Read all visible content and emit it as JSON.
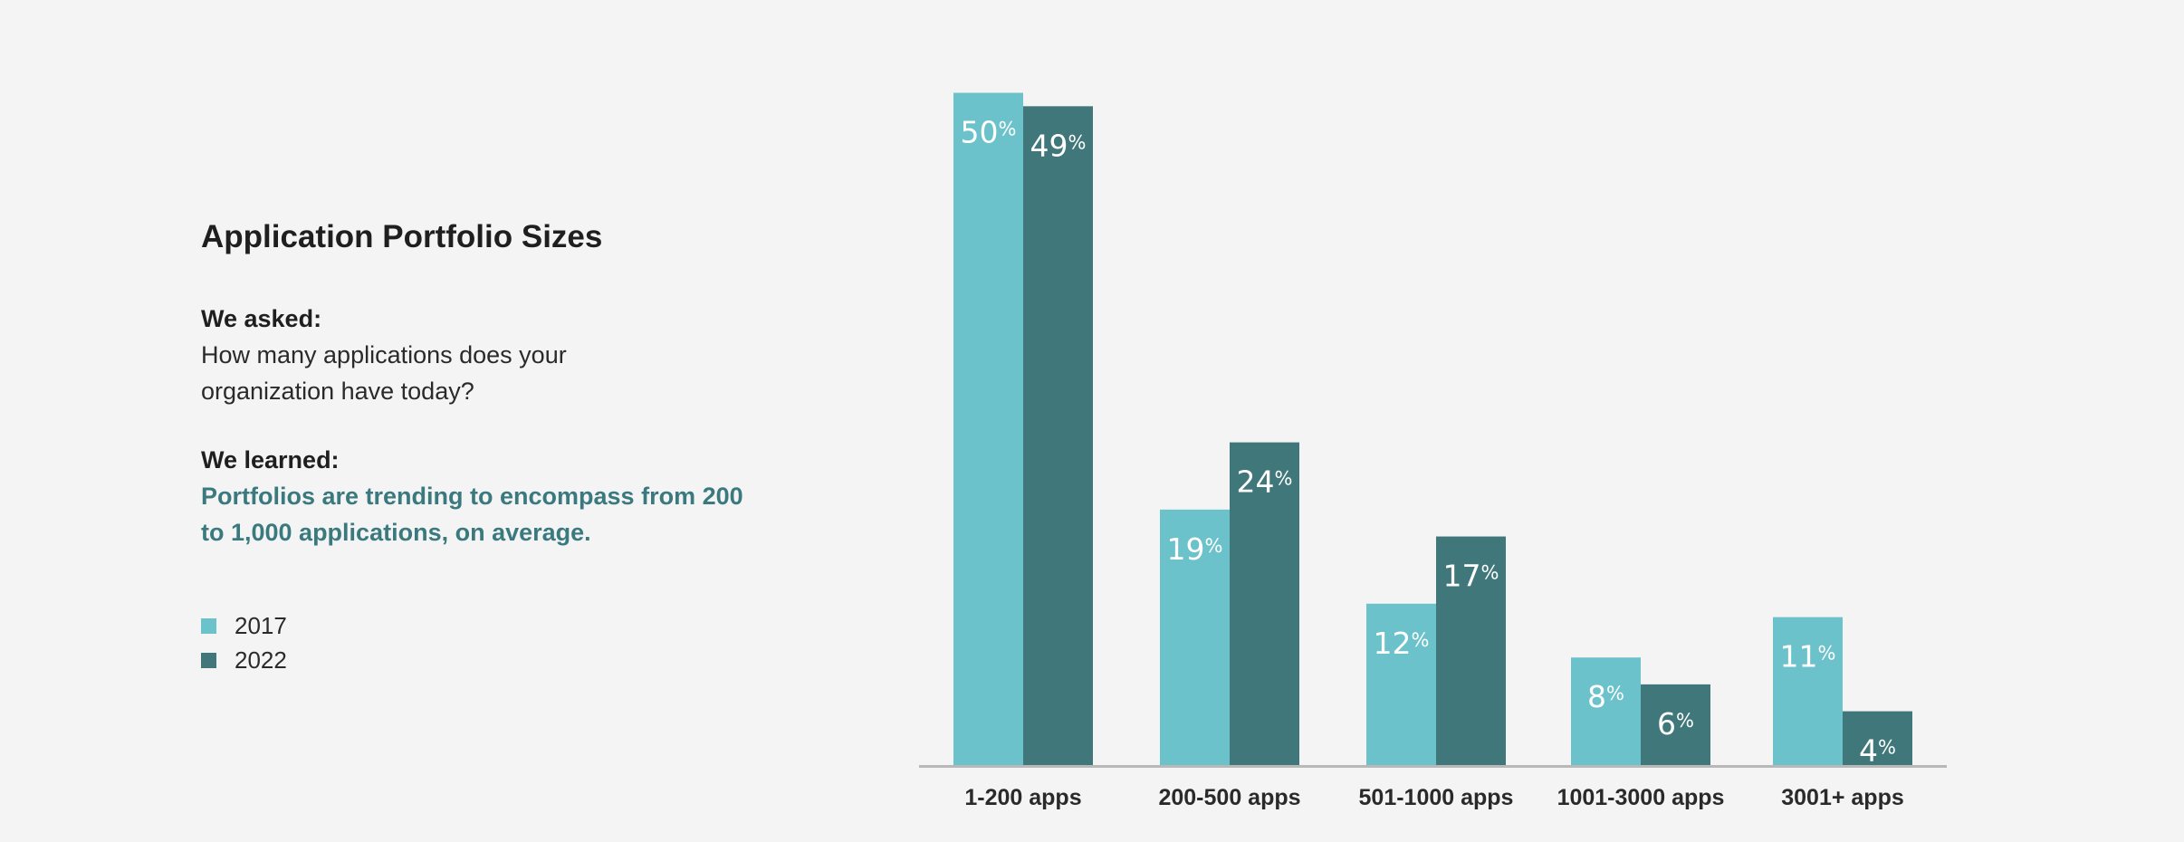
{
  "panel": {
    "title": "Application Portfolio Sizes",
    "asked_label": "We asked:",
    "question": "How many applications does your organization have today?",
    "learned_label": "We learned:",
    "finding": "Portfolios are trending to encompass from 200 to 1,000 applications, on average."
  },
  "colors": {
    "series_2017": "#6cc2cb",
    "series_2022": "#40777a",
    "axis": "#b8b8b8",
    "finding_text": "#3a7a7f"
  },
  "chart_data": {
    "type": "bar",
    "categories": [
      "1-200 apps",
      "200-500 apps",
      "501-1000 apps",
      "1001-3000 apps",
      "3001+ apps"
    ],
    "series": [
      {
        "name": "2017",
        "values": [
          50,
          19,
          12,
          8,
          11
        ],
        "color": "#6cc2cb"
      },
      {
        "name": "2022",
        "values": [
          49,
          24,
          17,
          6,
          4
        ],
        "color": "#40777a"
      }
    ],
    "value_suffix": "%",
    "ylim": [
      0,
      50
    ],
    "grid": false,
    "legend_position": "left"
  }
}
